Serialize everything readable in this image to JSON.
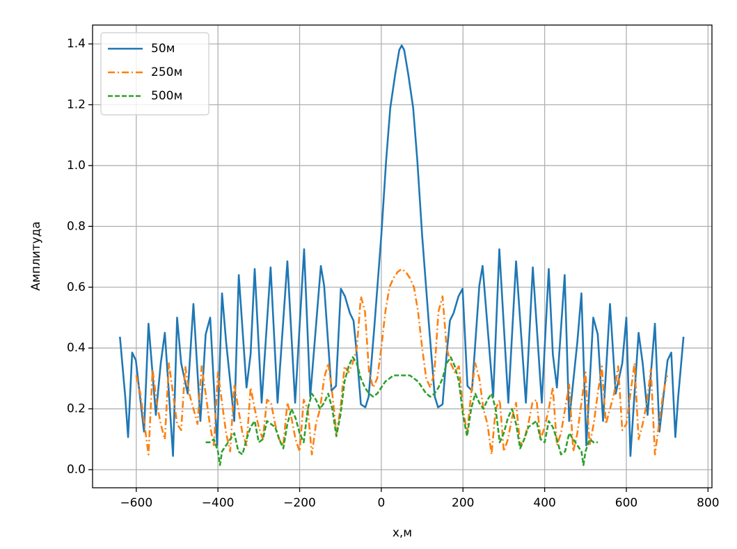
{
  "chart_data": {
    "type": "line",
    "xlabel": "x,м",
    "ylabel": "Амплитуда",
    "xlim": [
      -707,
      809.6
    ],
    "ylim": [
      -0.0595,
      1.462
    ],
    "xticks": [
      {
        "value": -600,
        "label": "−600"
      },
      {
        "value": -400,
        "label": "−400"
      },
      {
        "value": -200,
        "label": "−200"
      },
      0,
      200,
      400,
      600,
      800
    ],
    "yticks": [
      {
        "value": 0,
        "label": "0.0"
      },
      0.2,
      0.4,
      0.6,
      0.8,
      {
        "value": 1,
        "label": "1.0"
      },
      1.2,
      1.4
    ],
    "grid": true,
    "legend": "upper left",
    "series": [
      {
        "name": "50м",
        "color": "#1f77b4",
        "linestyle": "solid",
        "x": [
          -640,
          -627,
          -620,
          -610,
          -601,
          -581,
          -570,
          -552,
          -540,
          -530,
          -520,
          -510,
          -500,
          -490,
          -474,
          -460,
          -443,
          -430,
          -419,
          -402,
          -390,
          -380,
          -360,
          -349,
          -330,
          -320,
          -310,
          -293,
          -271,
          -254,
          -230,
          -211,
          -189,
          -174,
          -148,
          -140,
          -122,
          -111,
          -99,
          -89,
          -77,
          -68,
          -60,
          -50,
          -39,
          -31,
          -17,
          0,
          12,
          22,
          34,
          44,
          50,
          56,
          66,
          78,
          88,
          100,
          117,
          131,
          139,
          150,
          160,
          168,
          177,
          189,
          199,
          211,
          222,
          240,
          248,
          274,
          289,
          311,
          330,
          354,
          371,
          393,
          410,
          420,
          430,
          449,
          460,
          480,
          490,
          502,
          519,
          530,
          543,
          560,
          574,
          590,
          600,
          610,
          620,
          630,
          640,
          652,
          670,
          681,
          701,
          710,
          720,
          727,
          740
        ],
        "values": [
          0.437,
          0.24,
          0.107,
          0.385,
          0.36,
          0.125,
          0.48,
          0.18,
          0.35,
          0.45,
          0.25,
          0.045,
          0.5,
          0.35,
          0.25,
          0.545,
          0.16,
          0.445,
          0.5,
          0.08,
          0.58,
          0.42,
          0.16,
          0.64,
          0.27,
          0.38,
          0.66,
          0.22,
          0.665,
          0.22,
          0.685,
          0.22,
          0.725,
          0.24,
          0.67,
          0.605,
          0.26,
          0.275,
          0.595,
          0.57,
          0.515,
          0.49,
          0.38,
          0.215,
          0.205,
          0.24,
          0.47,
          0.77,
          1.02,
          1.19,
          1.3,
          1.38,
          1.395,
          1.38,
          1.3,
          1.19,
          1.02,
          0.77,
          0.47,
          0.24,
          0.205,
          0.215,
          0.38,
          0.49,
          0.515,
          0.57,
          0.595,
          0.275,
          0.26,
          0.605,
          0.67,
          0.24,
          0.725,
          0.22,
          0.685,
          0.22,
          0.665,
          0.22,
          0.66,
          0.38,
          0.27,
          0.64,
          0.16,
          0.42,
          0.58,
          0.08,
          0.5,
          0.445,
          0.16,
          0.545,
          0.25,
          0.35,
          0.5,
          0.045,
          0.25,
          0.45,
          0.35,
          0.18,
          0.48,
          0.125,
          0.36,
          0.385,
          0.107,
          0.24,
          0.437
        ]
      },
      {
        "name": "250м",
        "color": "#ff7f0e",
        "linestyle": "dashdot",
        "x": [
          -600,
          -590,
          -580,
          -570,
          -560,
          -550,
          -540,
          -530,
          -520,
          -510,
          -500,
          -490,
          -480,
          -470,
          -460,
          -450,
          -440,
          -430,
          -420,
          -410,
          -400,
          -390,
          -380,
          -370,
          -360,
          -350,
          -340,
          -330,
          -320,
          -310,
          -300,
          -290,
          -280,
          -270,
          -260,
          -250,
          -240,
          -230,
          -220,
          -210,
          -200,
          -190,
          -180,
          -170,
          -160,
          -150,
          -140,
          -130,
          -120,
          -110,
          -100,
          -90,
          -80,
          -70,
          -60,
          -50,
          -40,
          -30,
          -20,
          -10,
          0,
          10,
          20,
          30,
          40,
          50,
          60,
          70,
          80,
          90,
          100,
          110,
          120,
          130,
          140,
          150,
          160,
          170,
          180,
          190,
          200,
          210,
          220,
          230,
          240,
          250,
          260,
          270,
          280,
          290,
          300,
          310,
          320,
          330,
          340,
          350,
          360,
          370,
          380,
          390,
          400,
          410,
          420,
          430,
          440,
          450,
          460,
          470,
          480,
          490,
          500,
          510,
          520,
          530,
          540,
          550,
          560,
          570,
          580,
          590,
          600,
          610,
          620,
          630,
          640,
          650,
          660,
          670,
          680,
          690,
          700
        ],
        "values": [
          0.31,
          0.25,
          0.15,
          0.05,
          0.33,
          0.22,
          0.15,
          0.1,
          0.35,
          0.25,
          0.15,
          0.13,
          0.34,
          0.25,
          0.2,
          0.15,
          0.34,
          0.25,
          0.15,
          0.08,
          0.32,
          0.22,
          0.12,
          0.06,
          0.28,
          0.2,
          0.12,
          0.08,
          0.27,
          0.2,
          0.14,
          0.1,
          0.23,
          0.22,
          0.15,
          0.1,
          0.08,
          0.22,
          0.17,
          0.1,
          0.06,
          0.23,
          0.2,
          0.05,
          0.15,
          0.2,
          0.3,
          0.35,
          0.25,
          0.12,
          0.2,
          0.34,
          0.32,
          0.35,
          0.4,
          0.57,
          0.52,
          0.32,
          0.27,
          0.3,
          0.4,
          0.52,
          0.6,
          0.63,
          0.65,
          0.66,
          0.65,
          0.63,
          0.6,
          0.52,
          0.4,
          0.3,
          0.27,
          0.32,
          0.52,
          0.57,
          0.4,
          0.35,
          0.32,
          0.34,
          0.2,
          0.12,
          0.25,
          0.35,
          0.3,
          0.2,
          0.15,
          0.05,
          0.2,
          0.23,
          0.06,
          0.1,
          0.17,
          0.22,
          0.08,
          0.1,
          0.15,
          0.22,
          0.23,
          0.1,
          0.14,
          0.2,
          0.27,
          0.08,
          0.12,
          0.2,
          0.28,
          0.06,
          0.12,
          0.22,
          0.32,
          0.08,
          0.15,
          0.25,
          0.34,
          0.15,
          0.2,
          0.25,
          0.34,
          0.13,
          0.15,
          0.25,
          0.35,
          0.1,
          0.15,
          0.22,
          0.33,
          0.05,
          0.15,
          0.25,
          0.31
        ]
      },
      {
        "name": "500м",
        "color": "#2ca02c",
        "linestyle": "dashed",
        "x": [
          -430,
          -420,
          -410,
          -400,
          -395,
          -390,
          -380,
          -370,
          -360,
          -350,
          -340,
          -330,
          -320,
          -310,
          -300,
          -290,
          -280,
          -270,
          -260,
          -250,
          -240,
          -230,
          -220,
          -210,
          -200,
          -190,
          -180,
          -170,
          -160,
          -150,
          -140,
          -130,
          -120,
          -110,
          -100,
          -90,
          -80,
          -70,
          -60,
          -50,
          -40,
          -30,
          -20,
          -10,
          0,
          10,
          20,
          30,
          40,
          50,
          60,
          70,
          80,
          90,
          100,
          110,
          120,
          130,
          140,
          150,
          160,
          170,
          180,
          190,
          200,
          210,
          220,
          230,
          240,
          250,
          260,
          270,
          280,
          290,
          300,
          310,
          320,
          330,
          340,
          350,
          360,
          370,
          380,
          390,
          400,
          410,
          420,
          430,
          440,
          450,
          460,
          470,
          480,
          490,
          495,
          500,
          510,
          520,
          530
        ],
        "values": [
          0.09,
          0.09,
          0.1,
          0.06,
          0.015,
          0.06,
          0.08,
          0.1,
          0.12,
          0.06,
          0.05,
          0.1,
          0.14,
          0.16,
          0.09,
          0.1,
          0.16,
          0.15,
          0.14,
          0.1,
          0.07,
          0.15,
          0.2,
          0.17,
          0.12,
          0.09,
          0.2,
          0.25,
          0.23,
          0.2,
          0.22,
          0.25,
          0.2,
          0.11,
          0.18,
          0.29,
          0.34,
          0.37,
          0.35,
          0.3,
          0.27,
          0.25,
          0.24,
          0.25,
          0.27,
          0.29,
          0.3,
          0.31,
          0.31,
          0.31,
          0.31,
          0.31,
          0.3,
          0.29,
          0.27,
          0.25,
          0.24,
          0.25,
          0.27,
          0.3,
          0.35,
          0.37,
          0.34,
          0.29,
          0.18,
          0.11,
          0.2,
          0.25,
          0.22,
          0.2,
          0.23,
          0.25,
          0.2,
          0.09,
          0.12,
          0.17,
          0.2,
          0.15,
          0.07,
          0.1,
          0.14,
          0.15,
          0.16,
          0.1,
          0.09,
          0.16,
          0.14,
          0.1,
          0.05,
          0.06,
          0.12,
          0.1,
          0.08,
          0.06,
          0.015,
          0.06,
          0.1,
          0.09,
          0.09
        ]
      }
    ]
  }
}
